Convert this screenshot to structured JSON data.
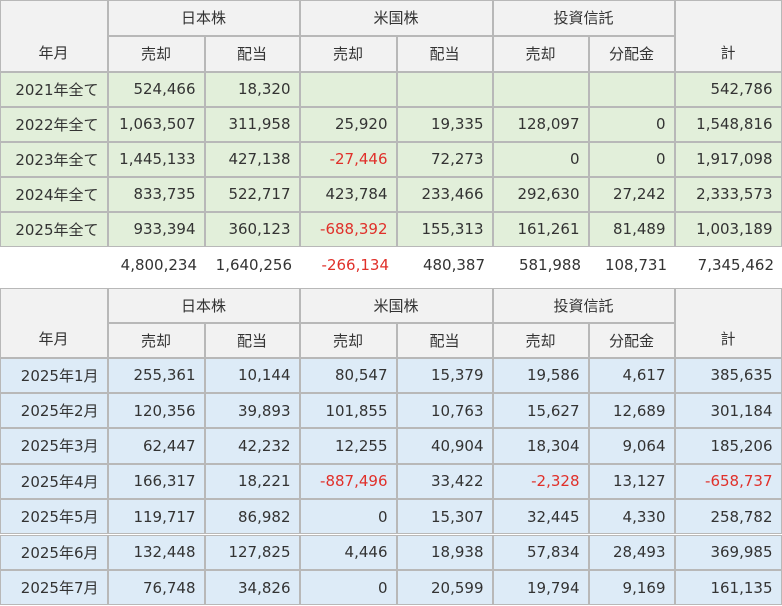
{
  "tables": [
    {
      "header": {
        "month": "年月",
        "groups": [
          "日本株",
          "米国株",
          "投資信託"
        ],
        "subs": [
          "売却",
          "配当",
          "売却",
          "配当",
          "売却",
          "分配金"
        ],
        "total": "計"
      },
      "rows": [
        [
          "2021年全て",
          "524,466",
          "18,320",
          null,
          null,
          null,
          null,
          "542,786"
        ],
        [
          "2022年全て",
          "1,063,507",
          "311,958",
          "25,920",
          "19,335",
          "128,097",
          "0",
          "1,548,816"
        ],
        [
          "2023年全て",
          "1,445,133",
          "427,138",
          "-27,446",
          "72,273",
          "0",
          "0",
          "1,917,098"
        ],
        [
          "2024年全て",
          "833,735",
          "522,717",
          "423,784",
          "233,466",
          "292,630",
          "27,242",
          "2,333,573"
        ],
        [
          "2025年全て",
          "933,394",
          "360,123",
          "-688,392",
          "155,313",
          "161,261",
          "81,489",
          "1,003,189"
        ]
      ],
      "totals": [
        "4,800,234",
        "1,640,256",
        "-266,134",
        "480,387",
        "581,988",
        "108,731",
        "7,345,462"
      ]
    },
    {
      "header": {
        "month": "年月",
        "groups": [
          "日本株",
          "米国株",
          "投資信託"
        ],
        "subs": [
          "売却",
          "配当",
          "売却",
          "配当",
          "売却",
          "分配金"
        ],
        "total": "計"
      },
      "rows": [
        [
          "2025年1月",
          "255,361",
          "10,144",
          "80,547",
          "15,379",
          "19,586",
          "4,617",
          "385,635"
        ],
        [
          "2025年2月",
          "120,356",
          "39,893",
          "101,855",
          "10,763",
          "15,627",
          "12,689",
          "301,184"
        ],
        [
          "2025年3月",
          "62,447",
          "42,232",
          "12,255",
          "40,904",
          "18,304",
          "9,064",
          "185,206"
        ],
        [
          "2025年4月",
          "166,317",
          "18,221",
          "-887,496",
          "33,422",
          "-2,328",
          "13,127",
          "-658,737"
        ],
        [
          "2025年5月",
          "119,717",
          "86,982",
          "0",
          "15,307",
          "32,445",
          "4,330",
          "258,782"
        ],
        [
          "2025年6月",
          "132,448",
          "127,825",
          "4,446",
          "18,938",
          "57,834",
          "28,493",
          "369,985"
        ],
        [
          "2025年7月",
          "76,748",
          "34,826",
          "0",
          "20,599",
          "19,794",
          "9,169",
          "161,135"
        ]
      ]
    }
  ]
}
